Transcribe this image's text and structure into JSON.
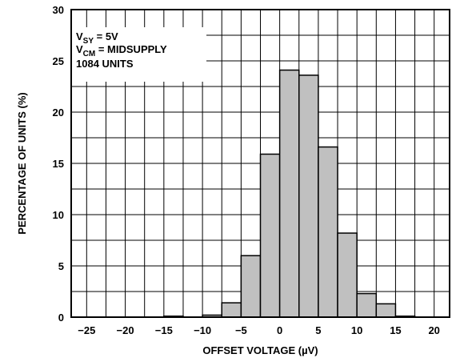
{
  "chart_data": {
    "type": "bar",
    "xlabel": "OFFSET VOLTAGE (µV)",
    "ylabel": "PERCENTAGE OF UNITS (%)",
    "xlim": [
      -27,
      22
    ],
    "ylim": [
      0,
      30
    ],
    "x_ticks": [
      -25,
      -20,
      -15,
      -10,
      -5,
      0,
      5,
      10,
      15,
      20
    ],
    "y_ticks": [
      0,
      5,
      10,
      15,
      20,
      25,
      30
    ],
    "bin_width": 2.5,
    "bins": [
      {
        "start": -15.0,
        "value": 0.1
      },
      {
        "start": -10.0,
        "value": 0.2
      },
      {
        "start": -7.5,
        "value": 1.4
      },
      {
        "start": -5.0,
        "value": 6.0
      },
      {
        "start": -2.5,
        "value": 15.9
      },
      {
        "start": 0.0,
        "value": 24.1
      },
      {
        "start": 2.5,
        "value": 23.6
      },
      {
        "start": 5.0,
        "value": 16.6
      },
      {
        "start": 7.5,
        "value": 8.2
      },
      {
        "start": 10.0,
        "value": 2.3
      },
      {
        "start": 12.5,
        "value": 1.3
      },
      {
        "start": 15.0,
        "value": 0.1
      }
    ],
    "grid": true,
    "bar_color": "#c0c0c0",
    "annotations": {
      "line1": {
        "main": "V",
        "sub": "SY",
        "rest": " = 5V"
      },
      "line2": {
        "main": "V",
        "sub": "CM",
        "rest": " = MIDSUPPLY"
      },
      "line3": "1084 UNITS"
    }
  }
}
